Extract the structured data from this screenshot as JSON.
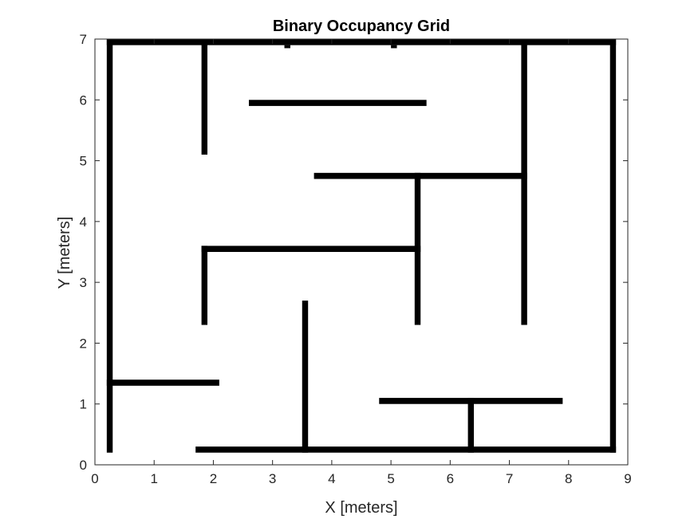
{
  "chart_data": {
    "type": "occupancy-grid",
    "title": "Binary Occupancy Grid",
    "xlabel": "X [meters]",
    "ylabel": "Y [meters]",
    "xlim": [
      0,
      9
    ],
    "ylim": [
      0,
      7
    ],
    "xticks": [
      "0",
      "1",
      "2",
      "3",
      "4",
      "5",
      "6",
      "7",
      "8",
      "9"
    ],
    "yticks": [
      "0",
      "1",
      "2",
      "3",
      "4",
      "5",
      "6",
      "7"
    ],
    "grid": false,
    "colors": {
      "occupied": "#000000",
      "free": "#ffffff",
      "axes": "#262626"
    },
    "occupied_cells": [
      {
        "x0": 0.2,
        "y0": 6.9,
        "x1": 8.8,
        "y1": 7.0
      },
      {
        "x0": 3.2,
        "y0": 6.85,
        "x1": 3.3,
        "y1": 6.9
      },
      {
        "x0": 5.0,
        "y0": 6.85,
        "x1": 5.1,
        "y1": 6.9
      },
      {
        "x0": 0.2,
        "y0": 0.2,
        "x1": 0.3,
        "y1": 7.0
      },
      {
        "x0": 8.7,
        "y0": 0.2,
        "x1": 8.8,
        "y1": 7.0
      },
      {
        "x0": 1.8,
        "y0": 5.1,
        "x1": 1.9,
        "y1": 7.0
      },
      {
        "x0": 2.6,
        "y0": 5.9,
        "x1": 5.6,
        "y1": 6.0
      },
      {
        "x0": 7.2,
        "y0": 2.3,
        "x1": 7.3,
        "y1": 7.0
      },
      {
        "x0": 3.7,
        "y0": 4.7,
        "x1": 7.3,
        "y1": 4.8
      },
      {
        "x0": 5.4,
        "y0": 2.3,
        "x1": 5.5,
        "y1": 4.8
      },
      {
        "x0": 1.8,
        "y0": 3.5,
        "x1": 5.5,
        "y1": 3.6
      },
      {
        "x0": 1.8,
        "y0": 2.3,
        "x1": 1.9,
        "y1": 3.6
      },
      {
        "x0": 3.5,
        "y0": 0.2,
        "x1": 3.6,
        "y1": 2.7
      },
      {
        "x0": 0.2,
        "y0": 1.3,
        "x1": 2.1,
        "y1": 1.4
      },
      {
        "x0": 4.8,
        "y0": 1.0,
        "x1": 7.9,
        "y1": 1.1
      },
      {
        "x0": 6.3,
        "y0": 0.2,
        "x1": 6.4,
        "y1": 1.1
      },
      {
        "x0": 1.7,
        "y0": 0.2,
        "x1": 8.8,
        "y1": 0.3
      }
    ]
  }
}
